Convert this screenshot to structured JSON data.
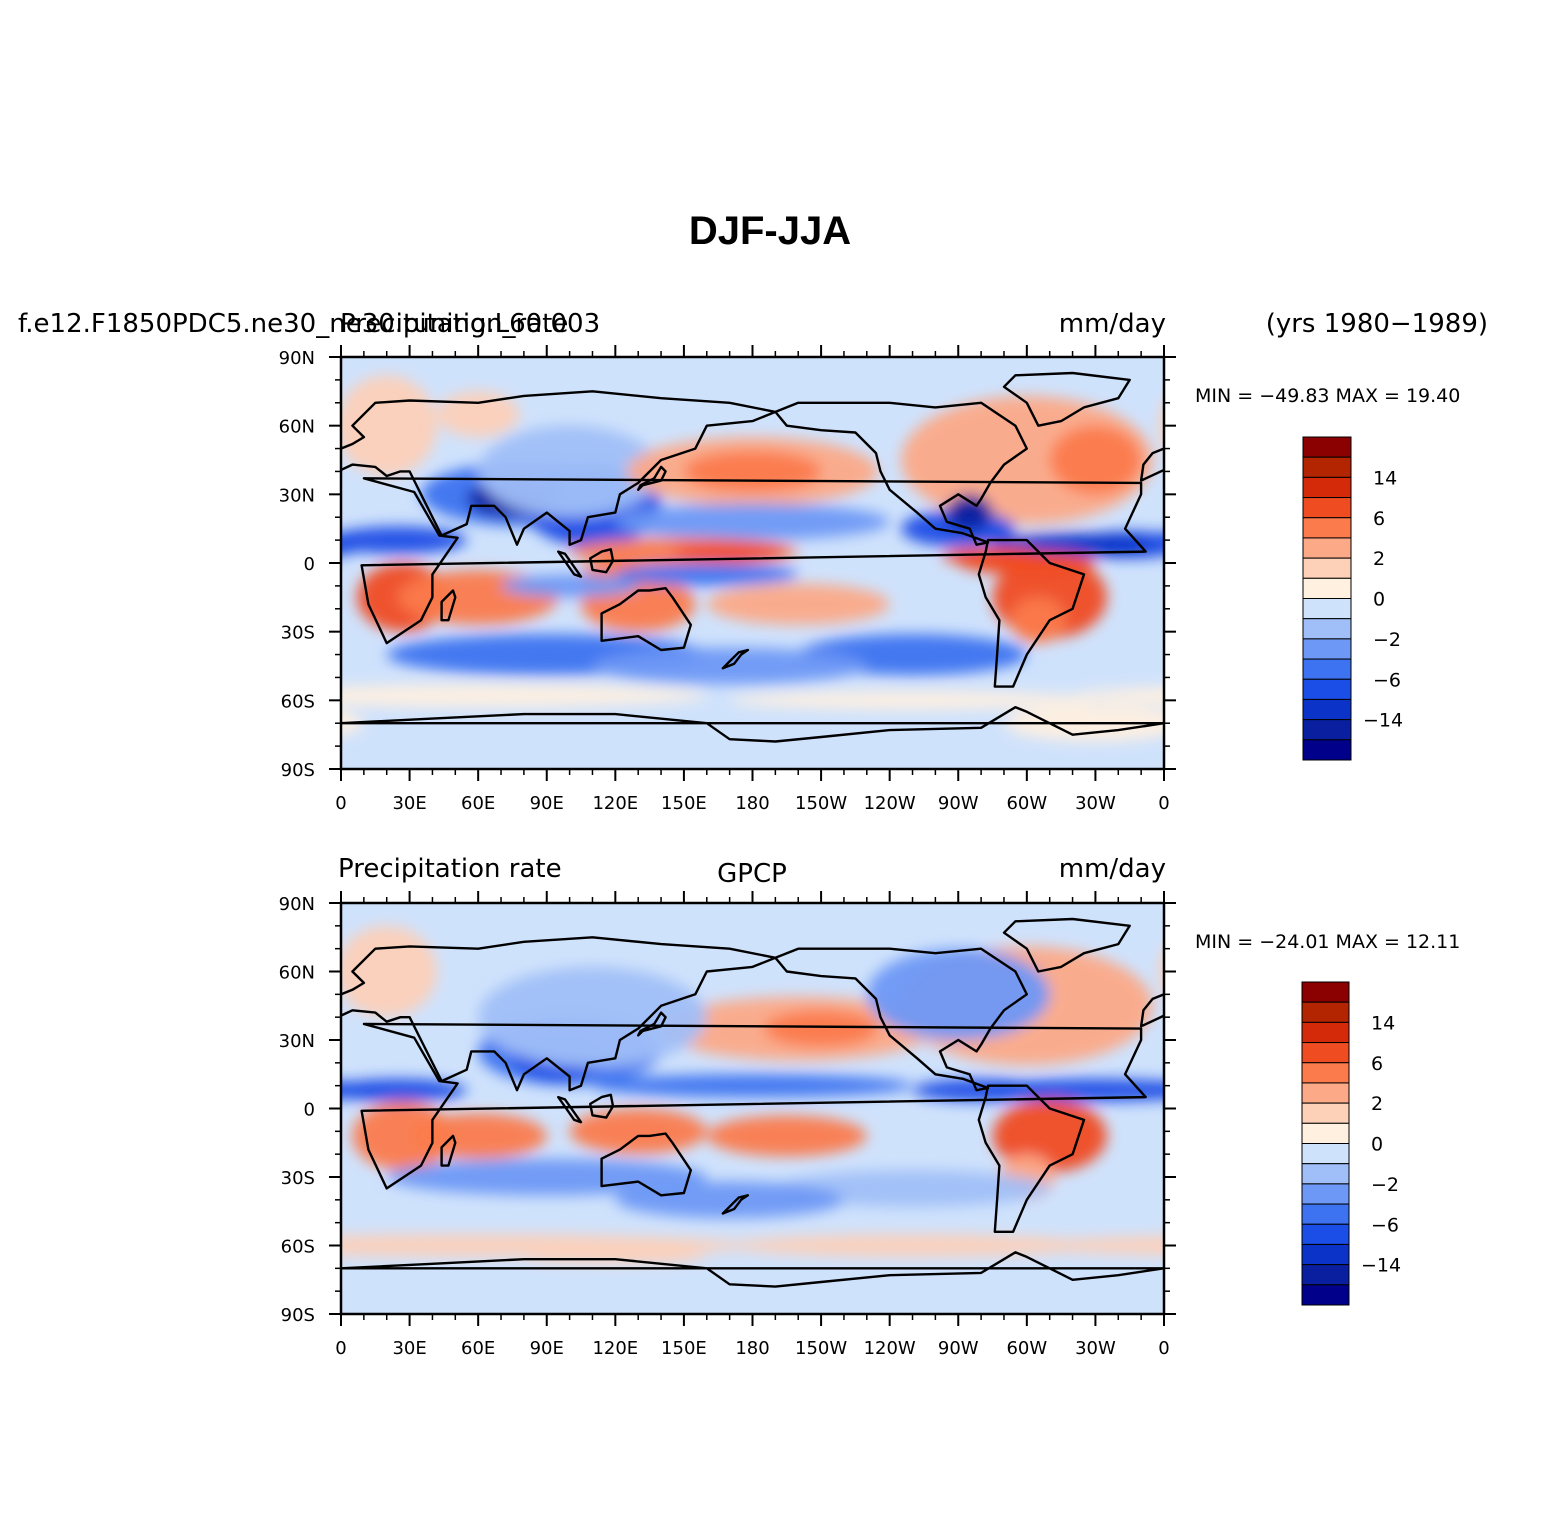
{
  "figure": {
    "title": "DJF-JJA",
    "year_range": "(yrs 1980−1989)"
  },
  "colors": {
    "levels": [
      "#00008b",
      "#0a1fa0",
      "#0c33c8",
      "#1a4ee6",
      "#3d72f0",
      "#6d98f5",
      "#a0bff8",
      "#cfe2fc",
      "#fff0e0",
      "#fdd0b8",
      "#fca988",
      "#fb7b4d",
      "#f04c22",
      "#d52a0a",
      "#b32400",
      "#8b0000"
    ],
    "continent_outline": "#000000"
  },
  "chart_data": [
    {
      "type": "heatmap",
      "panel": "top",
      "left_title": "f.e12.F1850PDC5.ne30_ne30.tuning.L60.003",
      "center_title": "Precipitation_rate",
      "units": "mm/day",
      "stats": "MIN = −49.83 MAX =   19.40",
      "min": -49.83,
      "max": 19.4,
      "xlim": [
        0,
        360
      ],
      "ylim": [
        -90,
        90
      ],
      "x_ticks": [
        "0",
        "30E",
        "60E",
        "90E",
        "120E",
        "150E",
        "180",
        "150W",
        "120W",
        "90W",
        "60W",
        "30W",
        "0"
      ],
      "y_ticks": [
        "90N",
        "60N",
        "30N",
        "0",
        "30S",
        "60S",
        "90S"
      ],
      "colorbar_labels": [
        "14",
        "6",
        "2",
        "0",
        "−2",
        "−6",
        "−14"
      ]
    },
    {
      "type": "heatmap",
      "panel": "bottom",
      "left_title": "Precipitation rate",
      "center_title": "GPCP",
      "units": "mm/day",
      "stats": "MIN = −24.01 MAX =   12.11",
      "min": -24.01,
      "max": 12.11,
      "xlim": [
        0,
        360
      ],
      "ylim": [
        -90,
        90
      ],
      "x_ticks": [
        "0",
        "30E",
        "60E",
        "90E",
        "120E",
        "150E",
        "180",
        "150W",
        "120W",
        "90W",
        "60W",
        "30W",
        "0"
      ],
      "y_ticks": [
        "90N",
        "60N",
        "30N",
        "0",
        "30S",
        "60S",
        "90S"
      ],
      "colorbar_labels": [
        "14",
        "6",
        "2",
        "0",
        "−2",
        "−6",
        "−14"
      ]
    }
  ]
}
